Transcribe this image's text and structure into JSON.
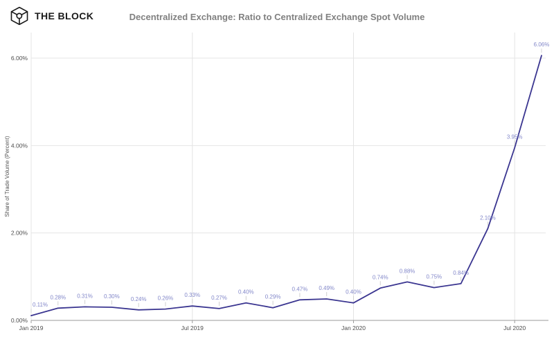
{
  "brand": {
    "name": "THE BLOCK"
  },
  "header": {
    "title": "Decentralized Exchange: Ratio to Centralized Exchange Spot Volume"
  },
  "chart_data": {
    "type": "line",
    "title": "Decentralized Exchange: Ratio to Centralized Exchange Spot Volume",
    "xlabel": "",
    "ylabel": "Share of Trade Volume (Percent)",
    "categories": [
      "Jan 2019",
      "Feb 2019",
      "Mar 2019",
      "Apr 2019",
      "May 2019",
      "Jun 2019",
      "Jul 2019",
      "Aug 2019",
      "Sep 2019",
      "Oct 2019",
      "Nov 2019",
      "Dec 2019",
      "Jan 2020",
      "Feb 2020",
      "Mar 2020",
      "Apr 2020",
      "May 2020",
      "Jun 2020",
      "Jul 2020",
      "Aug 2020"
    ],
    "values": [
      0.11,
      0.28,
      0.31,
      0.3,
      0.24,
      0.26,
      0.33,
      0.27,
      0.4,
      0.29,
      0.47,
      0.49,
      0.4,
      0.74,
      0.88,
      0.75,
      0.84,
      2.1,
      3.95,
      6.06
    ],
    "point_labels": [
      "0.11%",
      "0.28%",
      "0.31%",
      "0.30%",
      "0.24%",
      "0.26%",
      "0.33%",
      "0.27%",
      "0.40%",
      "0.29%",
      "0.47%",
      "0.49%",
      "0.40%",
      "0.74%",
      "0.88%",
      "0.75%",
      "0.84%",
      "2.10%",
      "3.95%",
      "6.06%"
    ],
    "y_ticks": [
      {
        "value": 0,
        "label": "0.00%"
      },
      {
        "value": 2,
        "label": "2.00%"
      },
      {
        "value": 4,
        "label": "4.00%"
      },
      {
        "value": 6,
        "label": "6.00%"
      }
    ],
    "x_ticks": [
      {
        "index": 0,
        "label": "Jan 2019"
      },
      {
        "index": 6,
        "label": "Jul 2019"
      },
      {
        "index": 12,
        "label": "Jan 2020"
      },
      {
        "index": 18,
        "label": "Jul 2020"
      }
    ],
    "ylim": [
      0,
      6.6
    ],
    "grid": true,
    "legend": "none",
    "colors": {
      "line": "#3a3590",
      "point_label": "#8287c9",
      "grid": "#e4e4e4",
      "axis": "#9a9a9a",
      "tick_text": "#4d4d4d"
    }
  }
}
